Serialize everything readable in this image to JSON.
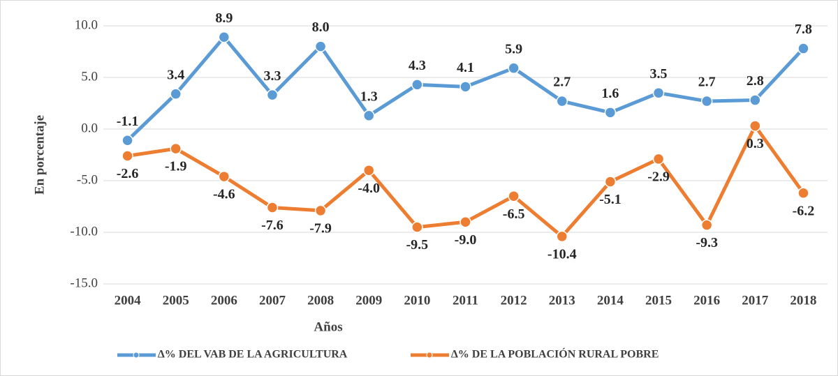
{
  "chart_data": {
    "type": "line",
    "x_label": "Años",
    "y_label": "En porcentaje",
    "categories": [
      "2004",
      "2005",
      "2006",
      "2007",
      "2008",
      "2009",
      "2010",
      "2011",
      "2012",
      "2013",
      "2014",
      "2015",
      "2016",
      "2017",
      "2018"
    ],
    "series": [
      {
        "name": "∆% DEL VAB DE LA AGRICULTURA",
        "color": "#5b9bd5",
        "values": [
          -1.1,
          3.4,
          8.9,
          3.3,
          8.0,
          1.3,
          4.3,
          4.1,
          5.9,
          2.7,
          1.6,
          3.5,
          2.7,
          2.8,
          7.8
        ],
        "value_labels": [
          "-1.1",
          "3.4",
          "8.9",
          "3.3",
          "8.0",
          "1.3",
          "4.3",
          "4.1",
          "5.9",
          "2.7",
          "1.6",
          "3.5",
          "2.7",
          "2.8",
          "7.8"
        ]
      },
      {
        "name": "∆% DE LA POBLACIÓN RURAL POBRE",
        "color": "#ed7d31",
        "values": [
          -2.6,
          -1.9,
          -4.6,
          -7.6,
          -7.9,
          -4.0,
          -9.5,
          -9.0,
          -6.5,
          -10.4,
          -5.1,
          -2.9,
          -9.3,
          0.3,
          -6.2
        ],
        "value_labels": [
          "-2.6",
          "-1.9",
          "-4.6",
          "-7.6",
          "-7.9",
          "-4.0",
          "-9.5",
          "-9.0",
          "-6.5",
          "-10.4",
          "-5.1",
          "-2.9",
          "-9.3",
          "0.3",
          "-6.2"
        ]
      }
    ],
    "ylim": [
      -15,
      10
    ],
    "yticks": [
      {
        "value": -15,
        "label": "-15.0"
      },
      {
        "value": -10,
        "label": "-10.0"
      },
      {
        "value": -5,
        "label": "-5.0"
      },
      {
        "value": 0,
        "label": "0.0"
      },
      {
        "value": 5,
        "label": "5.0"
      },
      {
        "value": 10,
        "label": "10.0"
      }
    ],
    "grid": true,
    "legend": "bottom"
  }
}
